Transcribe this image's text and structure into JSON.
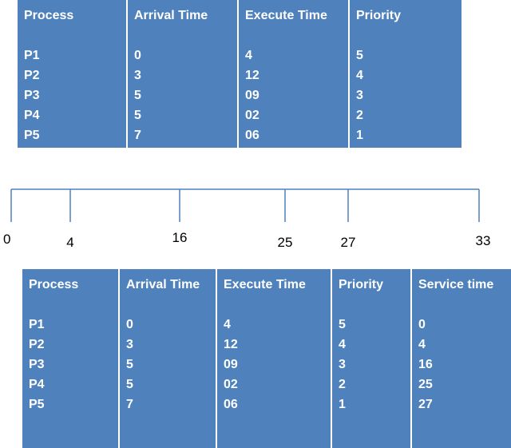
{
  "table_1": {
    "header": [
      "Process",
      "Arrival Time",
      "Execute Time",
      "Priority"
    ],
    "rows": [
      [
        "P1",
        "0",
        "4",
        "5"
      ],
      [
        "P2",
        "3",
        "12",
        "4"
      ],
      [
        "P3",
        "5",
        "09",
        "3"
      ],
      [
        "P4",
        "5",
        "02",
        "2"
      ],
      [
        "P5",
        "7",
        "06",
        "1"
      ]
    ]
  },
  "timeline": {
    "labels": [
      "0",
      "4",
      "16",
      "25",
      "27",
      "33"
    ]
  },
  "table_2": {
    "header": [
      "Process",
      "Arrival Time",
      "Execute Time",
      "Priority",
      "Service time"
    ],
    "rows": [
      [
        "P1",
        "0",
        "4",
        "5",
        "0"
      ],
      [
        "P2",
        "3",
        "12",
        "4",
        "4"
      ],
      [
        "P3",
        "5",
        "09",
        "3",
        "16"
      ],
      [
        "P4",
        "5",
        "02",
        "2",
        "25"
      ],
      [
        "P5",
        "7",
        "06",
        "1",
        "27"
      ]
    ]
  }
}
